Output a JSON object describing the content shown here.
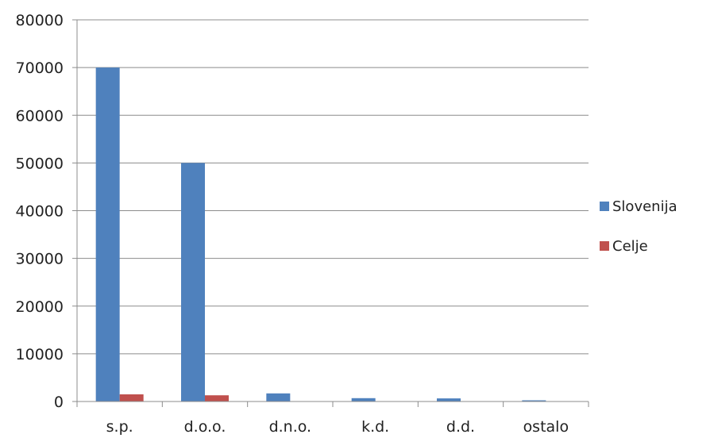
{
  "chart_data": {
    "type": "bar",
    "title": "",
    "xlabel": "",
    "ylabel": "",
    "categories": [
      "s.p.",
      "d.o.o.",
      "d.n.o.",
      "k.d.",
      "d.d.",
      "ostalo"
    ],
    "series": [
      {
        "name": "Slovenija",
        "color": "#4F81BD",
        "values": [
          70000,
          50000,
          1700,
          700,
          650,
          250
        ]
      },
      {
        "name": "Celje",
        "color": "#C0504D",
        "values": [
          1500,
          1300,
          60,
          30,
          25,
          10
        ]
      }
    ],
    "ylim": [
      0,
      80000
    ],
    "yticks": [
      0,
      10000,
      20000,
      30000,
      40000,
      50000,
      60000,
      70000,
      80000
    ],
    "grid": true,
    "legend_position": "right"
  }
}
